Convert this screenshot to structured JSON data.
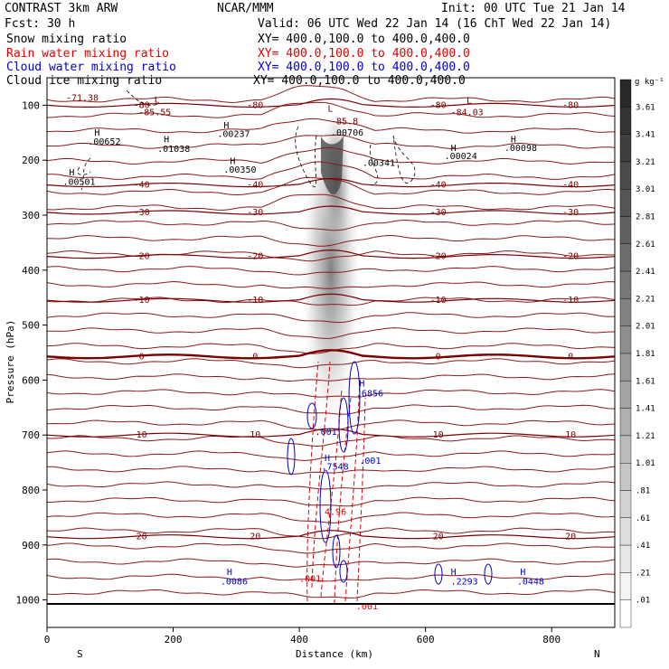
{
  "header": {
    "model": "CONTRAST  3km ARW",
    "center": "NCAR/MMM",
    "init": "Init: 00 UTC Tue 21 Jan 14",
    "fcst": "Fcst:   30 h",
    "valid": "Valid: 06 UTC Wed 22 Jan 14 (16 ChT Wed 22 Jan 14)"
  },
  "legend": [
    {
      "name": "Snow mixing ratio",
      "xy": "XY= 400.0,100.0 to 400.0,400.0",
      "color": "#000000"
    },
    {
      "name": "Rain water mixing ratio",
      "xy": "XY= 400.0,100.0 to 400.0,400.0",
      "color": "#e00000"
    },
    {
      "name": "Cloud water mixing ratio",
      "xy": "XY= 400.0,100.0 to 400.0,400.0",
      "color": "#0000cc"
    },
    {
      "name": "Cloud ice mixing ratio",
      "xy": "XY= 400.0,100.0 to 400.0,400.0",
      "color": "#000000"
    }
  ],
  "chart_data": {
    "type": "heatmap",
    "xlabel": "Distance (km)",
    "ylabel": "Pressure (hPa)",
    "x_ticks": [
      "0",
      "200",
      "400",
      "600",
      "800"
    ],
    "xlim": [
      0,
      900
    ],
    "y_ticks": [
      "100",
      "200",
      "300",
      "400",
      "500",
      "600",
      "700",
      "800",
      "900",
      "1000"
    ],
    "ylim": [
      50,
      1050
    ],
    "direction_labels": {
      "left": "S",
      "right": "N"
    },
    "colorbar": {
      "unit": "g kg⁻¹",
      "labels": [
        "3.61",
        "3.41",
        "3.21",
        "3.01",
        "2.81",
        "2.61",
        "2.41",
        "2.21",
        "2.01",
        "1.81",
        "1.61",
        "1.41",
        "1.21",
        "1.01",
        ".81",
        ".61",
        ".41",
        ".21",
        ".01"
      ]
    },
    "temperature_contours": [
      {
        "value": -80,
        "label": "-80",
        "p": 100
      },
      {
        "value": -40,
        "label": "-40",
        "p": 245
      },
      {
        "value": -30,
        "label": "-30",
        "p": 295
      },
      {
        "value": -20,
        "label": "-20",
        "p": 375
      },
      {
        "value": -10,
        "label": "-10",
        "p": 455
      },
      {
        "value": 0,
        "label": "0",
        "p": 557
      },
      {
        "value": 10,
        "label": "10",
        "p": 700
      },
      {
        "value": 20,
        "label": "20",
        "p": 885
      }
    ],
    "annotations": [
      {
        "text": "-71.38",
        "x": 30,
        "p": 92
      },
      {
        "text": "L",
        "x": 170,
        "p": 95
      },
      {
        "text": "-85.55",
        "x": 145,
        "p": 118
      },
      {
        "text": "L",
        "x": 445,
        "p": 112
      },
      {
        "text": "-85.8",
        "x": 450,
        "p": 135
      },
      {
        "text": "L",
        "x": 665,
        "p": 97
      },
      {
        "text": "-84.03",
        "x": 640,
        "p": 118
      },
      {
        "text": "H",
        "x": 75,
        "p": 155
      },
      {
        "text": ".00652",
        "x": 65,
        "p": 172
      },
      {
        "text": "H",
        "x": 185,
        "p": 168
      },
      {
        "text": ".01038",
        "x": 175,
        "p": 185
      },
      {
        "text": "H",
        "x": 280,
        "p": 142
      },
      {
        "text": ".00237",
        "x": 270,
        "p": 158
      },
      {
        "text": ".00706",
        "x": 450,
        "p": 155
      },
      {
        "text": "H",
        "x": 640,
        "p": 183
      },
      {
        "text": ".00024",
        "x": 630,
        "p": 198
      },
      {
        "text": "H",
        "x": 735,
        "p": 168
      },
      {
        "text": ".00098",
        "x": 725,
        "p": 183
      },
      {
        "text": "H",
        "x": 290,
        "p": 207
      },
      {
        "text": ".00350",
        "x": 280,
        "p": 223
      },
      {
        "text": ".00341",
        "x": 500,
        "p": 210
      },
      {
        "text": "H",
        "x": 35,
        "p": 228
      },
      {
        "text": ".00501",
        "x": 25,
        "p": 245
      },
      {
        "text": "H",
        "x": 495,
        "p": 612
      },
      {
        "text": ".6856",
        "x": 490,
        "p": 630
      },
      {
        "text": ".001",
        "x": 425,
        "p": 700
      },
      {
        "text": "H",
        "x": 440,
        "p": 747
      },
      {
        "text": ".7548",
        "x": 435,
        "p": 763
      },
      {
        "text": ".001",
        "x": 495,
        "p": 752
      },
      {
        "text": "4.96",
        "x": 440,
        "p": 845
      },
      {
        "text": "H",
        "x": 285,
        "p": 955
      },
      {
        "text": ".0086",
        "x": 275,
        "p": 972
      },
      {
        "text": ".001",
        "x": 400,
        "p": 967
      },
      {
        "text": "H",
        "x": 640,
        "p": 955
      },
      {
        "text": ".2293",
        "x": 640,
        "p": 972
      },
      {
        "text": "H",
        "x": 750,
        "p": 955
      },
      {
        "text": ".0448",
        "x": 745,
        "p": 972
      },
      {
        "text": ".001",
        "x": 490,
        "p": 1017
      }
    ]
  }
}
